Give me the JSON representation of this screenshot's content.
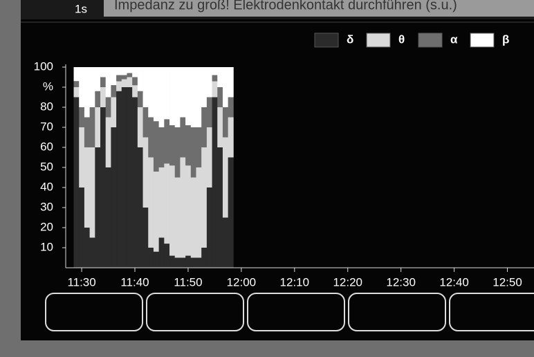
{
  "header": {
    "interval": "1s",
    "message": "Impedanz zu groß! Elektrodenkontakt durchführen (s.u.)"
  },
  "chart_data": {
    "type": "stacked-bar",
    "x": [
      689,
      690,
      691,
      692,
      693,
      694,
      695,
      696,
      697,
      698,
      699,
      700,
      701,
      702,
      703,
      704,
      705,
      706,
      707,
      708,
      709,
      710,
      711,
      712,
      713,
      714,
      715,
      716,
      717,
      718
    ],
    "series": [
      {
        "name": "δ",
        "color": "#2b2b2b",
        "values": [
          85,
          40,
          20,
          15,
          60,
          80,
          50,
          70,
          88,
          90,
          90,
          85,
          60,
          30,
          10,
          8,
          15,
          12,
          6,
          5,
          5,
          6,
          5,
          5,
          10,
          40,
          85,
          60,
          25,
          55
        ]
      },
      {
        "name": "θ",
        "color": "#d9d9d9",
        "values": [
          5,
          30,
          40,
          45,
          20,
          10,
          25,
          15,
          5,
          4,
          5,
          6,
          20,
          35,
          45,
          40,
          35,
          40,
          45,
          40,
          50,
          45,
          40,
          45,
          50,
          30,
          8,
          20,
          40,
          20
        ]
      },
      {
        "name": "α",
        "color": "#6e6e6e",
        "values": [
          3,
          10,
          15,
          20,
          8,
          5,
          10,
          6,
          3,
          2,
          2,
          4,
          8,
          15,
          20,
          25,
          20,
          22,
          20,
          25,
          20,
          20,
          25,
          20,
          20,
          15,
          3,
          10,
          15,
          10
        ]
      },
      {
        "name": "β",
        "color": "#ffffff",
        "values": [
          7,
          20,
          25,
          20,
          12,
          5,
          15,
          9,
          4,
          4,
          3,
          5,
          12,
          20,
          25,
          27,
          30,
          26,
          29,
          30,
          25,
          29,
          30,
          30,
          20,
          15,
          4,
          10,
          20,
          15
        ]
      }
    ],
    "ylim": [
      0,
      100
    ],
    "yticks": [
      10,
      20,
      30,
      40,
      50,
      60,
      70,
      80,
      {
        "value": 90,
        "label": "%"
      },
      100
    ],
    "xlim": [
      687,
      775
    ],
    "xticks": [
      {
        "value": 690,
        "label": "11:30"
      },
      {
        "value": 700,
        "label": "11:40"
      },
      {
        "value": 710,
        "label": "11:50"
      },
      {
        "value": 720,
        "label": "12:00"
      },
      {
        "value": 730,
        "label": "12:10"
      },
      {
        "value": 740,
        "label": "12:20"
      },
      {
        "value": 750,
        "label": "12:30"
      },
      {
        "value": 760,
        "label": "12:40"
      },
      {
        "value": 770,
        "label": "12:50"
      }
    ]
  }
}
